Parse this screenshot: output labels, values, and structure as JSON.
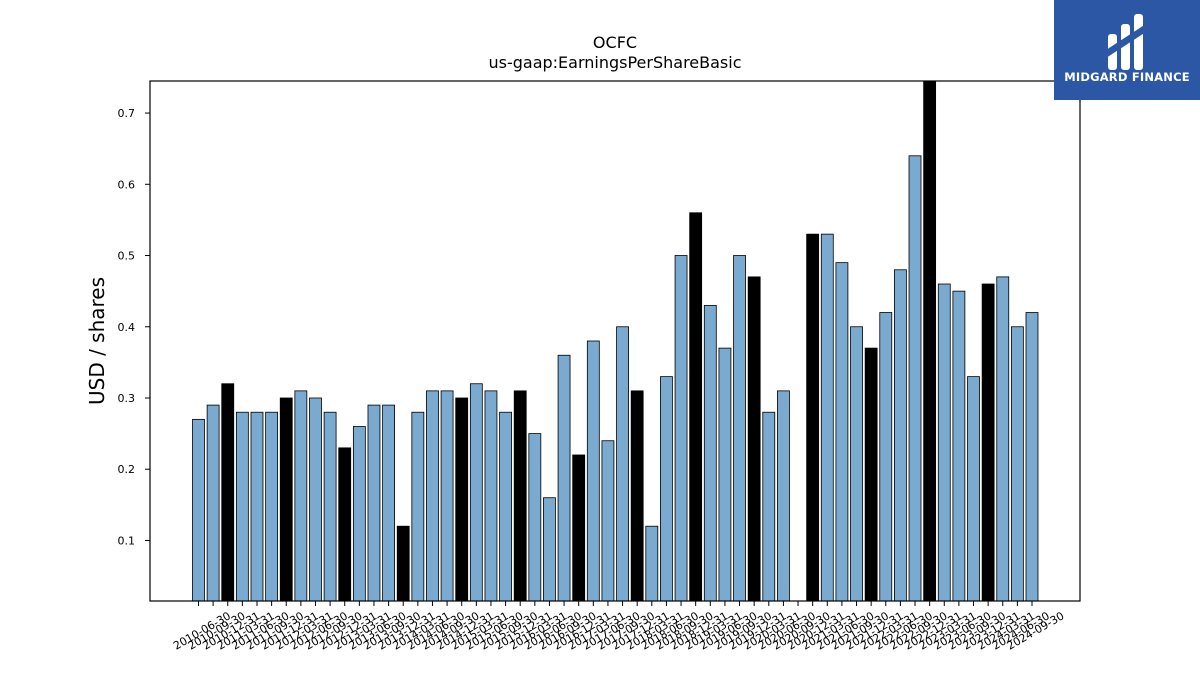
{
  "logo": {
    "text": "MIDGARD FINANCE",
    "bg_color": "#2b57a5",
    "icon": "midgard-logo-icon"
  },
  "colors": {
    "bar_blue": "#7aaad0",
    "bar_black": "#000000",
    "edge": "#000000"
  },
  "chart_data": {
    "type": "bar",
    "title": "OCFC",
    "subtitle": "us-gaap:EarningsPerShareBasic",
    "ylabel": "USD / shares",
    "xlabel": "",
    "ylim": [
      0.015,
      0.745
    ],
    "yticks": [
      0.1,
      0.2,
      0.3,
      0.4,
      0.5,
      0.6,
      0.7
    ],
    "grid": false,
    "categories": [
      "2010-06-30",
      "2010-09-30",
      "2010-12-31",
      "2011-03-31",
      "2011-06-30",
      "2011-09-30",
      "2011-12-31",
      "2012-03-31",
      "2012-06-30",
      "2012-09-30",
      "2012-12-31",
      "2013-03-31",
      "2013-06-30",
      "2013-09-30",
      "2013-12-31",
      "2014-03-31",
      "2014-06-30",
      "2014-09-30",
      "2014-12-31",
      "2015-03-31",
      "2015-06-30",
      "2015-09-30",
      "2015-12-31",
      "2016-03-31",
      "2016-06-30",
      "2016-09-30",
      "2016-12-31",
      "2017-03-31",
      "2017-06-30",
      "2017-09-30",
      "2017-12-31",
      "2018-03-31",
      "2018-06-30",
      "2018-09-30",
      "2018-12-31",
      "2019-03-31",
      "2019-06-30",
      "2019-09-30",
      "2019-12-31",
      "2020-03-31",
      "2020-06-30",
      "2020-09-30",
      "2020-12-31",
      "2021-03-31",
      "2021-06-30",
      "2021-09-30",
      "2021-12-31",
      "2022-03-31",
      "2022-06-30",
      "2022-09-30",
      "2022-12-31",
      "2023-03-31",
      "2023-06-30",
      "2023-09-30",
      "2023-12-31",
      "2024-03-31",
      "2024-06-30",
      "2024-09-30"
    ],
    "values": [
      0.27,
      0.29,
      0.32,
      0.28,
      0.28,
      0.28,
      0.3,
      0.31,
      0.3,
      0.28,
      0.23,
      0.26,
      0.29,
      0.29,
      0.12,
      0.28,
      0.31,
      0.31,
      0.3,
      0.32,
      0.31,
      0.28,
      0.31,
      0.25,
      0.16,
      0.36,
      0.22,
      0.38,
      0.24,
      0.4,
      0.31,
      0.12,
      0.33,
      0.5,
      0.56,
      0.43,
      0.37,
      0.5,
      0.47,
      0.28,
      0.31,
      0.0,
      0.53,
      0.53,
      0.49,
      0.4,
      0.37,
      0.42,
      0.48,
      0.64,
      0.76,
      0.46,
      0.45,
      0.33,
      0.46,
      0.47,
      0.4,
      0.42
    ],
    "highlight": [
      false,
      false,
      true,
      false,
      false,
      false,
      true,
      false,
      false,
      false,
      true,
      false,
      false,
      false,
      true,
      false,
      false,
      false,
      true,
      false,
      false,
      false,
      true,
      false,
      false,
      false,
      true,
      false,
      false,
      false,
      true,
      false,
      false,
      false,
      true,
      false,
      false,
      false,
      true,
      false,
      false,
      false,
      true,
      false,
      false,
      false,
      true,
      false,
      false,
      false,
      true,
      false,
      false,
      false,
      true,
      false,
      false,
      false
    ]
  }
}
